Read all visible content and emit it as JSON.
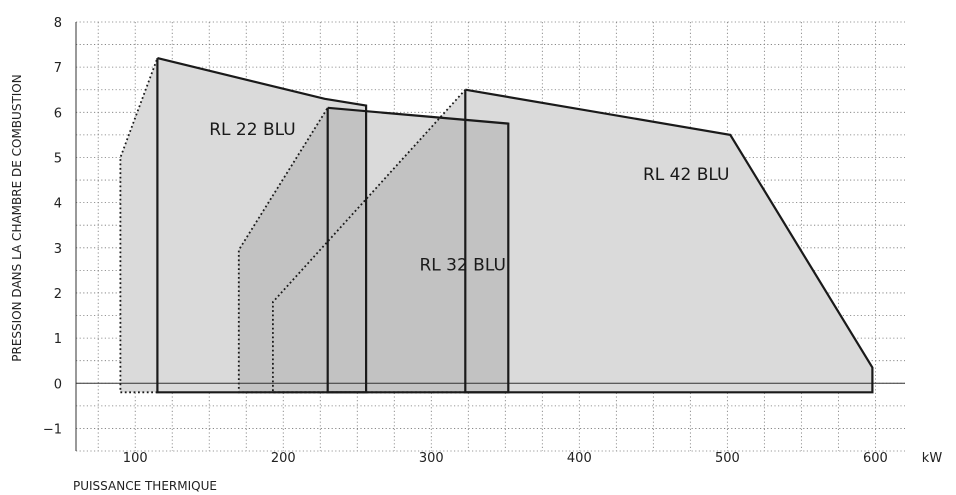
{
  "chart_data": {
    "type": "area",
    "xlabel": "PUISSANCE THERMIQUE",
    "ylabel": "PRESSION DANS LA CHAMBRE DE COMBUSTION",
    "x_unit": "kW",
    "xlim": [
      60,
      620
    ],
    "ylim": [
      -1.5,
      8
    ],
    "x_ticks": [
      100,
      200,
      300,
      400,
      500,
      600
    ],
    "y_ticks": [
      8,
      7,
      6,
      5,
      4,
      3,
      2,
      1,
      0,
      -1
    ],
    "grid": true,
    "colors": {
      "fill": "#dadada",
      "overlap": "#c2c2c2",
      "line": "#1a1a1a"
    },
    "series": [
      {
        "name": "RL 22 BLU",
        "dotted": [
          [
            115,
            -0.2
          ],
          [
            90,
            -0.2
          ],
          [
            90,
            5.0
          ],
          [
            115,
            7.2
          ]
        ],
        "solid": [
          [
            115,
            7.2
          ],
          [
            228,
            6.3
          ],
          [
            256,
            6.15
          ],
          [
            256,
            -0.2
          ],
          [
            115,
            -0.2
          ],
          [
            115,
            7.2
          ]
        ],
        "label_pos": [
          150,
          5.5
        ]
      },
      {
        "name": "RL 32 BLU",
        "dotted": [
          [
            230,
            -0.2
          ],
          [
            170,
            -0.2
          ],
          [
            170,
            2.95
          ],
          [
            230,
            6.1
          ]
        ],
        "solid": [
          [
            230,
            6.1
          ],
          [
            352,
            5.75
          ],
          [
            352,
            -0.2
          ],
          [
            230,
            -0.2
          ],
          [
            230,
            6.1
          ]
        ],
        "label_pos": [
          292,
          2.5
        ]
      },
      {
        "name": "RL 42 BLU",
        "dotted": [
          [
            323,
            -0.2
          ],
          [
            193,
            -0.2
          ],
          [
            193,
            1.8
          ],
          [
            323,
            6.5
          ]
        ],
        "solid": [
          [
            323,
            6.5
          ],
          [
            502,
            5.5
          ],
          [
            598,
            0.35
          ],
          [
            598,
            -0.2
          ],
          [
            323,
            -0.2
          ],
          [
            323,
            6.5
          ]
        ],
        "label_pos": [
          443,
          4.5
        ]
      }
    ]
  }
}
